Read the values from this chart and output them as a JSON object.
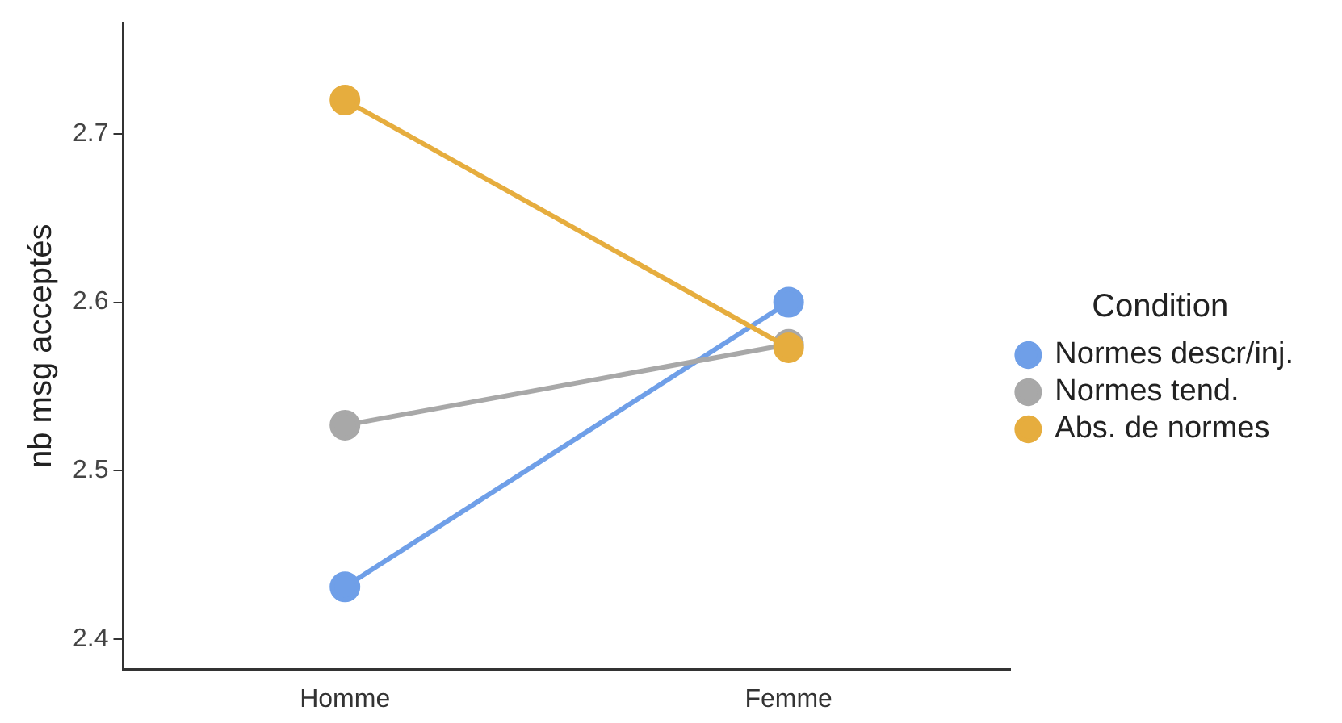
{
  "chart_data": {
    "type": "line",
    "ylabel": "nb msg acceptés",
    "legend_title": "Condition",
    "categories": [
      "Homme",
      "Femme"
    ],
    "series": [
      {
        "name": "Normes descr/inj.",
        "color": "#6f9fe8",
        "values": [
          2.431,
          2.6
        ]
      },
      {
        "name": "Normes tend.",
        "color": "#a8a8a8",
        "values": [
          2.527,
          2.575
        ]
      },
      {
        "name": "Abs. de normes",
        "color": "#e6ad3e",
        "values": [
          2.72,
          2.573
        ]
      }
    ],
    "ylim": [
      2.382,
      2.766
    ],
    "yticks": [
      2.4,
      2.5,
      2.6,
      2.7
    ],
    "grid": false,
    "legend": "right",
    "marker": "circle",
    "line_style": "solid"
  }
}
